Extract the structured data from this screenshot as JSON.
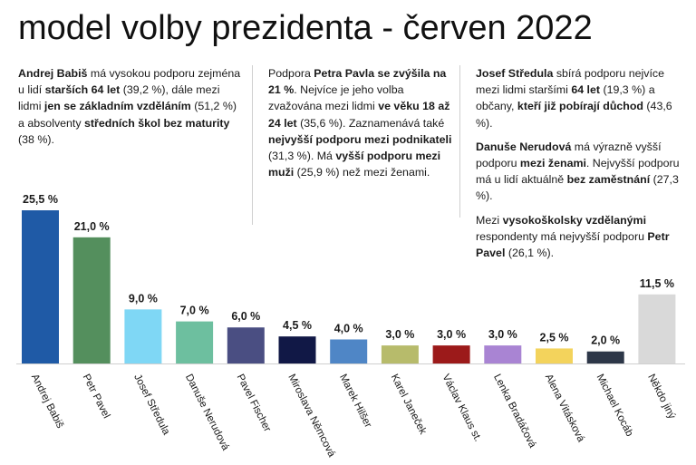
{
  "title": "model volby prezidenta - červen 2022",
  "notes": {
    "col1": [
      [
        {
          "t": "Andrej Babiš",
          "b": true
        },
        {
          "t": " má vysokou podporu zejména u lidí "
        },
        {
          "t": "starších 64 let",
          "b": true
        },
        {
          "t": " (39,2 %), dále mezi lidmi "
        },
        {
          "t": "jen se základním vzděláním",
          "b": true
        },
        {
          "t": " (51,2 %) a absolventy "
        },
        {
          "t": "středních škol bez maturity",
          "b": true
        },
        {
          "t": " (38 %)."
        }
      ]
    ],
    "col2": [
      [
        {
          "t": "Podpora "
        },
        {
          "t": "Petra Pavla se zvýšila na 21 %",
          "b": true
        },
        {
          "t": ". Nejvíce je jeho volba zvažována mezi lidmi "
        },
        {
          "t": "ve věku 18 až 24 let",
          "b": true
        },
        {
          "t": " (35,6 %). Zaznamenává také "
        },
        {
          "t": "nejvyšší podporu mezi podnikateli",
          "b": true
        },
        {
          "t": " (31,3 %). Má "
        },
        {
          "t": "vyšší podporu mezi muži",
          "b": true
        },
        {
          "t": " (25,9 %) než mezi ženami."
        }
      ]
    ],
    "col3": [
      [
        {
          "t": "Josef Středula",
          "b": true
        },
        {
          "t": " sbírá podporu nejvíce mezi lidmi staršími "
        },
        {
          "t": "64 let",
          "b": true
        },
        {
          "t": " (19,3 %) a občany, "
        },
        {
          "t": "kteří již pobírají důchod",
          "b": true
        },
        {
          "t": " (43,6 %)."
        }
      ],
      [
        {
          "t": "Danuše Nerudová",
          "b": true
        },
        {
          "t": " má výrazně vyšší podporu "
        },
        {
          "t": "mezi ženami",
          "b": true
        },
        {
          "t": ". Nejvyšší podporu má u lidí aktuálně "
        },
        {
          "t": "bez zaměstnání",
          "b": true
        },
        {
          "t": " (27,3 %)."
        }
      ],
      [
        {
          "t": "Mezi "
        },
        {
          "t": "vysokoškolsky vzdělanými",
          "b": true
        },
        {
          "t": " respondenty má nejvyšší podporu "
        },
        {
          "t": "Petr Pavel",
          "b": true
        },
        {
          "t": " (26,1 %)."
        }
      ]
    ]
  },
  "chart_data": {
    "type": "bar",
    "title": "model volby prezidenta - červen 2022",
    "categories": [
      "Andrej Babiš",
      "Petr Pavel",
      "Josef Středula",
      "Danuše Nerudová",
      "Pavel Fischer",
      "Miroslava Němcová",
      "Marek Hilšer",
      "Karel Janeček",
      "Václav Klaus st.",
      "Lenka Bradáčová",
      "Alena Vitásková",
      "Michael Kocáb",
      "Někdo jiný"
    ],
    "values": [
      25.5,
      21.0,
      9.0,
      7.0,
      6.0,
      4.5,
      4.0,
      3.0,
      3.0,
      3.0,
      2.5,
      2.0,
      11.5
    ],
    "value_labels": [
      "25,5 %",
      "21,0 %",
      "9,0 %",
      "7,0 %",
      "6,0 %",
      "4,5 %",
      "4,0 %",
      "3,0 %",
      "3,0 %",
      "3,0 %",
      "2,5 %",
      "2,0 %",
      "11,5 %"
    ],
    "colors": [
      "#1f5aa6",
      "#548f5d",
      "#7fd7f5",
      "#6dbf9f",
      "#4a4e82",
      "#111846",
      "#4f86c6",
      "#b7bb6b",
      "#9c1a1a",
      "#a984d3",
      "#f3d35c",
      "#2d3748",
      "#d9d9d9"
    ],
    "xlabel": "",
    "ylabel": "",
    "ylim": [
      0,
      25.5
    ],
    "grid": false,
    "legend": "none"
  }
}
